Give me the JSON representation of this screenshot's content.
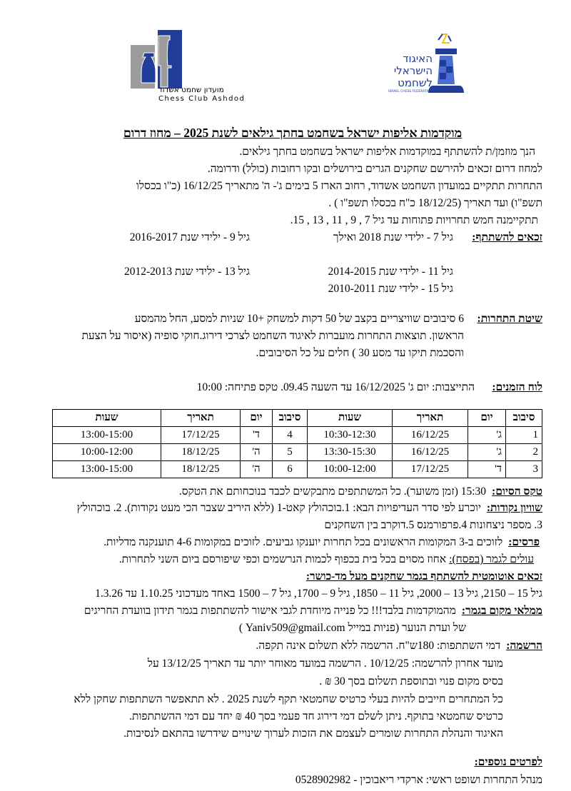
{
  "logos": {
    "club": {
      "text_he": "מועדון שחמט אשדוד",
      "text_en": "Chess Club Ashdod"
    },
    "federation": {
      "line1": "האיגוד",
      "line2": "הישראלי",
      "line3": "לשחמט",
      "text_en": "ISRAEL CHESS FEDERATION",
      "colors": {
        "blue": "#1f3d99",
        "gold": "#f2c21b",
        "grey": "#9c9c9c"
      }
    }
  },
  "title": "מוקדמות אליפות ישראל בשחמט בחתך גילאים לשנת 2025 – מחוז דרום",
  "intro": [
    "הנך מוזמן/ת להשתתף במוקדמות אליפות ישראל בשחמט בחתך גילאים.",
    "למחוז דרום זכאים להירשם שחקנים הגרים בירושלים ובקו רחובות  (כולל) ודרומה.",
    "התחרות תתקיים במועדון השחמט אשדוד, רחוב הארז 5  בימים ג'- ה' מתאריך 16/12/25 (כ\"ו בכסלו",
    "תשפ\"ו) ועד תאריך (18/12/25 כ\"ח בכסלו תשפ\"ו ) .",
    "תתקיימנה חמש תחרויות פתוחות עד גיל 7 , 9 , 11 , 13 , 15."
  ],
  "eligible": {
    "label": "זכאים להשתתף:",
    "items": [
      "גיל 7  -  ילידי שנת 2018 ואילך",
      "גיל 9  -  ילידי שנת 2016-2017",
      "גיל 11 -  ילידי שנת 2014-2015",
      "גיל 13 -  ילידי שנת 2012-2013",
      "גיל 15 -  ילידי שנת 2010-2011"
    ]
  },
  "format": {
    "label": "שיטת התחרות:",
    "lines": [
      "6 סיבובים שוויצריים בקצב של 50 דקות למשחק +10 שניות למסע, החל מהמסע",
      "הראשון. תוצאות התחרות מועברות לאיגוד השחמט לצרכי דירוג.חוקי סופיה (איסור על הצעת",
      "והסכמת תיקו עד מסע 30 ) חלים על כל הסיבובים."
    ]
  },
  "schedule": {
    "label": "לוח הזמנים:",
    "text": "התייצבות: יום ג' 16/12/2025  עד השעה 09.45.  טקס פתיחה: 10:00"
  },
  "table": {
    "headers": [
      "סיבוב",
      "יום",
      "תאריך",
      "שעות",
      "סיבוב",
      "יום",
      "תאריך",
      "שעות"
    ],
    "rows": [
      [
        "1",
        "ג'",
        "16/12/25",
        "10:30-12:30",
        "4",
        "ד'",
        "17/12/25",
        "13:00-15:00"
      ],
      [
        "2",
        "ג'",
        "16/12/25",
        "13:30-15:30",
        "5",
        "ה'",
        "18/12/25",
        "10:00-12:00"
      ],
      [
        "3",
        "ד'",
        "17/12/25",
        "10:00-12:00",
        "6",
        "ה'",
        "18/12/25",
        "13:00-15:00"
      ]
    ]
  },
  "closing": {
    "label": "טקס הסיום:",
    "text": "15:30 (זמן משוער). כל המשתתפים מתבקשים לכבד בנוכחותם את הטקס."
  },
  "tiebreak": {
    "label": "שוויון נקודות:",
    "line1": "יוכרע לפי סדר העדיפויות הבא: 1.בוכהולץ קאט-1 (ללא היריב שצבר הכי מעט נקודות). 2. בוכהולץ",
    "line2": "3. מספר ניצחונות  4.פרפורמנס 5.דוקרב בין השחקנים"
  },
  "prizes": {
    "label": "פרסים:",
    "text": "לזוכים ב-3 המקומות הראשונים בכל תחרות יוענקו גביעים. לזוכים במקומות 4-6 תוענקנה מדליות."
  },
  "final": {
    "label": "עולים לגמר (בפסח):",
    "text": "אחוז מסוים בכל בית בכפוף לכמות הנרשמים וכפי שיפורסם ביום השני לתחרות."
  },
  "auto": {
    "label": "זכאים אוטומטית להשתתף בגמר שחקנים מעל מד-כושר:",
    "text": "גיל 15 – 2150,  גיל 13 – 2000, גיל 11 – 1850,  גיל 9 – 1700, גיל 7 – 1500 באחד מעדכוני 1.10.25 עד 1.3.26"
  },
  "fill": {
    "label": "ממלאי מקום בגמר:",
    "line1": "מהמוקדמות בלבד!!! כל פנייה מיוחדת לגבי אישור להשתתפות בגמר תידון בוועדת החריגים",
    "line2": "של ועדת הנוער (פניות במייל Yaniv509@gmail.com  )"
  },
  "registration": {
    "label": "הרשמה:",
    "first": "דמי השתתפות: 180ש\"ח. הרשמה ללא תשלום אינה תקפה.",
    "lines": [
      "מועד אחרון להרשמה: 10/12/25 .  הרשמה במועד מאוחר יותר עד תאריך  13/12/25  על",
      "בסיס  מקום פנוי ובתוספת תשלום בסך 30 ₪ .",
      "כל המתחרים חייבים להיות בעלי כרטיס שחמטאי תקף לשנת 2025 . לא תתאפשר  השתתפות שחקן ללא",
      "כרטיס שחמטאי בתוקף. ניתן לשלם דמי דירוג חד פעמי בסך 40 ₪ יחד עם דמי ההשתתפות.",
      "האיגוד והנהלת התחרות שומרים לעצמם את הזכות לערוך שינויים שידרשו בהתאם לנסיבות."
    ]
  },
  "more": {
    "label": "לפרטים נוספים:",
    "contact": "מנהל התחרות ושופט ראשי: ארקדי ריאבוכין - 0528902982"
  }
}
